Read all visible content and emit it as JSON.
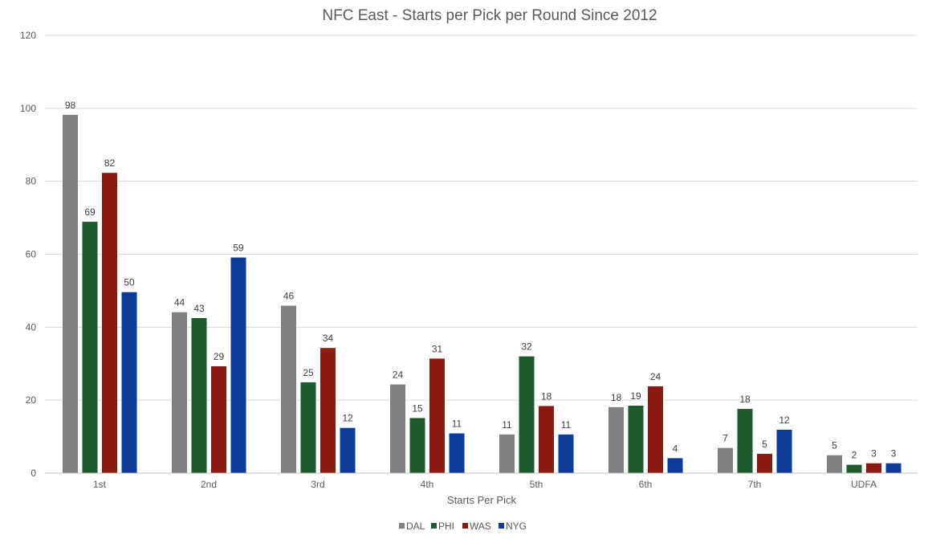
{
  "chart_data": {
    "type": "bar",
    "title": "NFC East - Starts per Pick per Round Since 2012",
    "xlabel": "Starts Per Pick",
    "ylabel": "",
    "ylim": [
      0,
      120
    ],
    "yticks": [
      0,
      20,
      40,
      60,
      80,
      100,
      120
    ],
    "grid": true,
    "legend_position": "bottom",
    "categories": [
      "1st",
      "2nd",
      "3rd",
      "4th",
      "5th",
      "6th",
      "7th",
      "UDFA"
    ],
    "series": [
      {
        "name": "DAL",
        "color": "#808080",
        "values": [
          98.2,
          44.1,
          45.9,
          24.3,
          10.6,
          18.1,
          6.9,
          4.9
        ],
        "labels": [
          "98",
          "44",
          "46",
          "24",
          "11",
          "18",
          "7",
          "5"
        ]
      },
      {
        "name": "PHI",
        "color": "#1f5a2e",
        "values": [
          68.9,
          42.5,
          24.9,
          15.1,
          32.0,
          18.5,
          17.6,
          2.3
        ],
        "labels": [
          "69",
          "43",
          "25",
          "15",
          "32",
          "19",
          "18",
          "2"
        ]
      },
      {
        "name": "WAS",
        "color": "#8b1a10",
        "values": [
          82.3,
          29.3,
          34.3,
          31.4,
          18.4,
          23.8,
          5.3,
          2.7
        ],
        "labels": [
          "82",
          "29",
          "34",
          "31",
          "18",
          "24",
          "5",
          "3"
        ]
      },
      {
        "name": "NYG",
        "color": "#0d3b99",
        "values": [
          49.6,
          59.1,
          12.4,
          10.9,
          10.6,
          4.1,
          11.9,
          2.7
        ],
        "labels": [
          "50",
          "59",
          "12",
          "11",
          "11",
          "4",
          "12",
          "3"
        ]
      }
    ]
  }
}
